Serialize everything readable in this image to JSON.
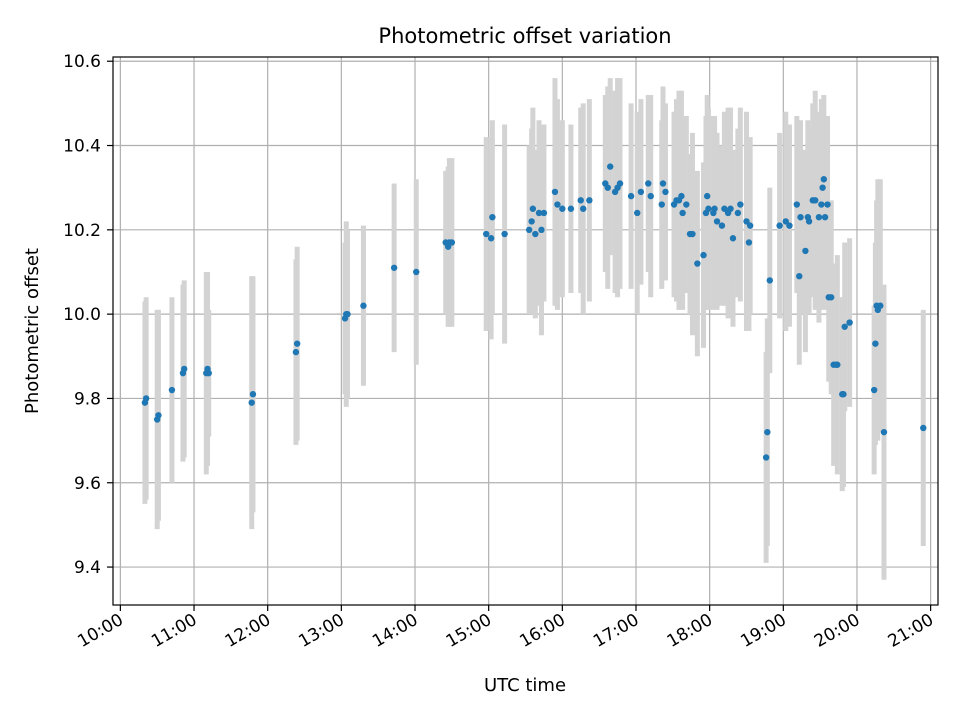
{
  "chart_data": {
    "type": "scatter",
    "title": "Photometric offset variation",
    "xlabel": "UTC time",
    "ylabel": "Photometric offset",
    "x_unit": "UTC hours",
    "xlim": [
      "09:54",
      "21:06"
    ],
    "ylim": [
      9.31,
      10.61
    ],
    "xticks": [
      "10:00",
      "11:00",
      "12:00",
      "13:00",
      "14:00",
      "15:00",
      "16:00",
      "17:00",
      "18:00",
      "19:00",
      "20:00",
      "21:00"
    ],
    "yticks": [
      "9.4",
      "9.6",
      "9.8",
      "10.0",
      "10.2",
      "10.4",
      "10.6"
    ],
    "grid": true,
    "colors": {
      "points": "#1f77b4",
      "errorbars": "#d3d3d3",
      "grid": "#b0b0b0"
    },
    "series": [
      {
        "x": [
          "10:20",
          "10:21",
          "10:30",
          "10:31",
          "10:42",
          "10:51",
          "10:52",
          "11:10",
          "11:11",
          "11:12",
          "11:47",
          "11:48",
          "12:23",
          "12:24",
          "13:03",
          "13:04",
          "13:05",
          "13:18",
          "13:43",
          "14:01",
          "14:25",
          "14:27",
          "14:28",
          "14:30",
          "14:58",
          "15:02",
          "15:03",
          "15:13",
          "15:33",
          "15:35",
          "15:36",
          "15:38",
          "15:41",
          "15:43",
          "15:45",
          "15:54",
          "15:56",
          "16:00",
          "16:07",
          "16:15",
          "16:17",
          "16:22",
          "16:35",
          "16:37",
          "16:39",
          "16:43",
          "16:45",
          "16:47",
          "16:56",
          "17:01",
          "17:04",
          "17:10",
          "17:12",
          "17:21",
          "17:22",
          "17:24",
          "17:31",
          "17:33",
          "17:35",
          "17:37",
          "17:38",
          "17:41",
          "17:44",
          "17:46",
          "17:50",
          "17:55",
          "17:57",
          "17:58",
          "17:59",
          "18:03",
          "18:04",
          "18:06",
          "18:10",
          "18:12",
          "18:15",
          "18:17",
          "18:19",
          "18:23",
          "18:25",
          "18:30",
          "18:32",
          "18:33",
          "18:46",
          "18:47",
          "18:49",
          "18:57",
          "19:02",
          "19:05",
          "19:11",
          "19:13",
          "19:14",
          "19:18",
          "19:20",
          "19:21",
          "19:24",
          "19:26",
          "19:29",
          "19:31",
          "19:32",
          "19:33",
          "19:34",
          "19:36",
          "19:37",
          "19:39",
          "19:41",
          "19:43",
          "19:44",
          "19:48",
          "19:49",
          "19:50",
          "19:54",
          "20:14",
          "20:15",
          "20:16",
          "20:17",
          "20:19",
          "20:22",
          "20:54"
        ],
        "y": [
          9.79,
          9.8,
          9.75,
          9.76,
          9.82,
          9.86,
          9.87,
          9.86,
          9.87,
          9.86,
          9.79,
          9.81,
          9.91,
          9.93,
          9.99,
          10.0,
          10.0,
          10.02,
          10.11,
          10.1,
          10.17,
          10.16,
          10.17,
          10.17,
          10.19,
          10.18,
          10.23,
          10.19,
          10.2,
          10.22,
          10.25,
          10.19,
          10.24,
          10.2,
          10.24,
          10.29,
          10.26,
          10.25,
          10.25,
          10.27,
          10.25,
          10.27,
          10.31,
          10.3,
          10.35,
          10.29,
          10.3,
          10.31,
          10.28,
          10.24,
          10.29,
          10.31,
          10.28,
          10.26,
          10.31,
          10.29,
          10.26,
          10.27,
          10.27,
          10.28,
          10.24,
          10.26,
          10.19,
          10.19,
          10.12,
          10.14,
          10.24,
          10.28,
          10.25,
          10.24,
          10.25,
          10.22,
          10.21,
          10.25,
          10.24,
          10.25,
          10.18,
          10.24,
          10.26,
          10.22,
          10.17,
          10.21,
          9.66,
          9.72,
          10.08,
          10.21,
          10.22,
          10.21,
          10.26,
          10.09,
          10.23,
          10.15,
          10.23,
          10.22,
          10.27,
          10.27,
          10.23,
          10.26,
          10.3,
          10.32,
          10.23,
          10.26,
          10.04,
          10.04,
          9.88,
          9.88,
          9.88,
          9.81,
          9.81,
          9.97,
          9.98,
          9.82,
          9.93,
          10.02,
          10.01,
          10.02,
          9.72,
          9.73
        ],
        "err": [
          0.24,
          0.24,
          0.26,
          0.25,
          0.22,
          0.21,
          0.21,
          0.24,
          0.23,
          0.15,
          0.3,
          0.28,
          0.22,
          0.23,
          0.18,
          0.22,
          0.2,
          0.19,
          0.2,
          0.22,
          0.17,
          0.19,
          0.2,
          0.2,
          0.23,
          0.24,
          0.23,
          0.26,
          0.2,
          0.22,
          0.24,
          0.2,
          0.22,
          0.25,
          0.21,
          0.27,
          0.25,
          0.21,
          0.2,
          0.22,
          0.25,
          0.24,
          0.21,
          0.24,
          0.21,
          0.24,
          0.26,
          0.25,
          0.22,
          0.24,
          0.22,
          0.21,
          0.24,
          0.2,
          0.23,
          0.21,
          0.22,
          0.24,
          0.26,
          0.25,
          0.23,
          0.21,
          0.19,
          0.24,
          0.22,
          0.22,
          0.23,
          0.24,
          0.24,
          0.23,
          0.22,
          0.21,
          0.19,
          0.23,
          0.25,
          0.24,
          0.21,
          0.2,
          0.23,
          0.26,
          0.21,
          0.21,
          0.25,
          0.27,
          0.22,
          0.22,
          0.26,
          0.24,
          0.21,
          0.21,
          0.23,
          0.24,
          0.23,
          0.22,
          0.23,
          0.26,
          0.25,
          0.25,
          0.21,
          0.2,
          0.22,
          0.21,
          0.2,
          0.23,
          0.24,
          0.22,
          0.26,
          0.23,
          0.22,
          0.2,
          0.2,
          0.2,
          0.24,
          0.25,
          0.31,
          0.3,
          0.35,
          0.28
        ]
      }
    ]
  }
}
